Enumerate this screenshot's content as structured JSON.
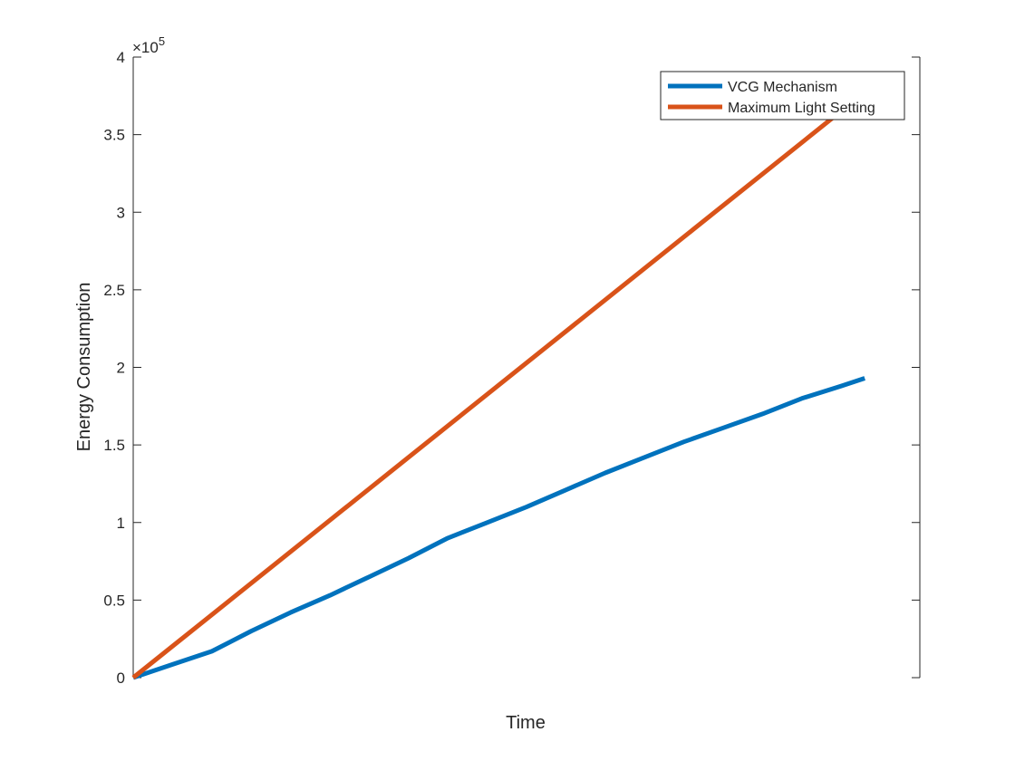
{
  "chart_data": {
    "type": "line",
    "title": "",
    "xlabel": "Time",
    "ylabel": "Energy Consumption",
    "xlim": [
      0,
      1
    ],
    "ylim": [
      0,
      400000
    ],
    "y_exponent_label": "×10",
    "y_exponent_power": "5",
    "yticks": [
      0,
      50000,
      100000,
      150000,
      200000,
      250000,
      300000,
      350000,
      400000
    ],
    "ytick_labels": [
      "0",
      "0.5",
      "1",
      "1.5",
      "2",
      "2.5",
      "3",
      "3.5",
      "4"
    ],
    "x_ticks_shown": false,
    "grid": false,
    "legend_position": "top-right",
    "series": [
      {
        "name": "VCG Mechanism",
        "color": "#0072BD",
        "x": [
          0,
          0.05,
          0.1,
          0.15,
          0.2,
          0.25,
          0.3,
          0.35,
          0.4,
          0.45,
          0.5,
          0.55,
          0.6,
          0.65,
          0.7,
          0.75,
          0.8,
          0.85,
          0.9,
          0.93
        ],
        "y": [
          0,
          8500,
          17000,
          30000,
          42000,
          53000,
          65000,
          77000,
          90000,
          100000,
          110000,
          121000,
          132000,
          142000,
          152000,
          161000,
          170000,
          180000,
          188000,
          193000
        ]
      },
      {
        "name": "Maximum Light Setting",
        "color": "#D95319",
        "x": [
          0,
          0.902
        ],
        "y": [
          0,
          366000
        ]
      }
    ]
  }
}
